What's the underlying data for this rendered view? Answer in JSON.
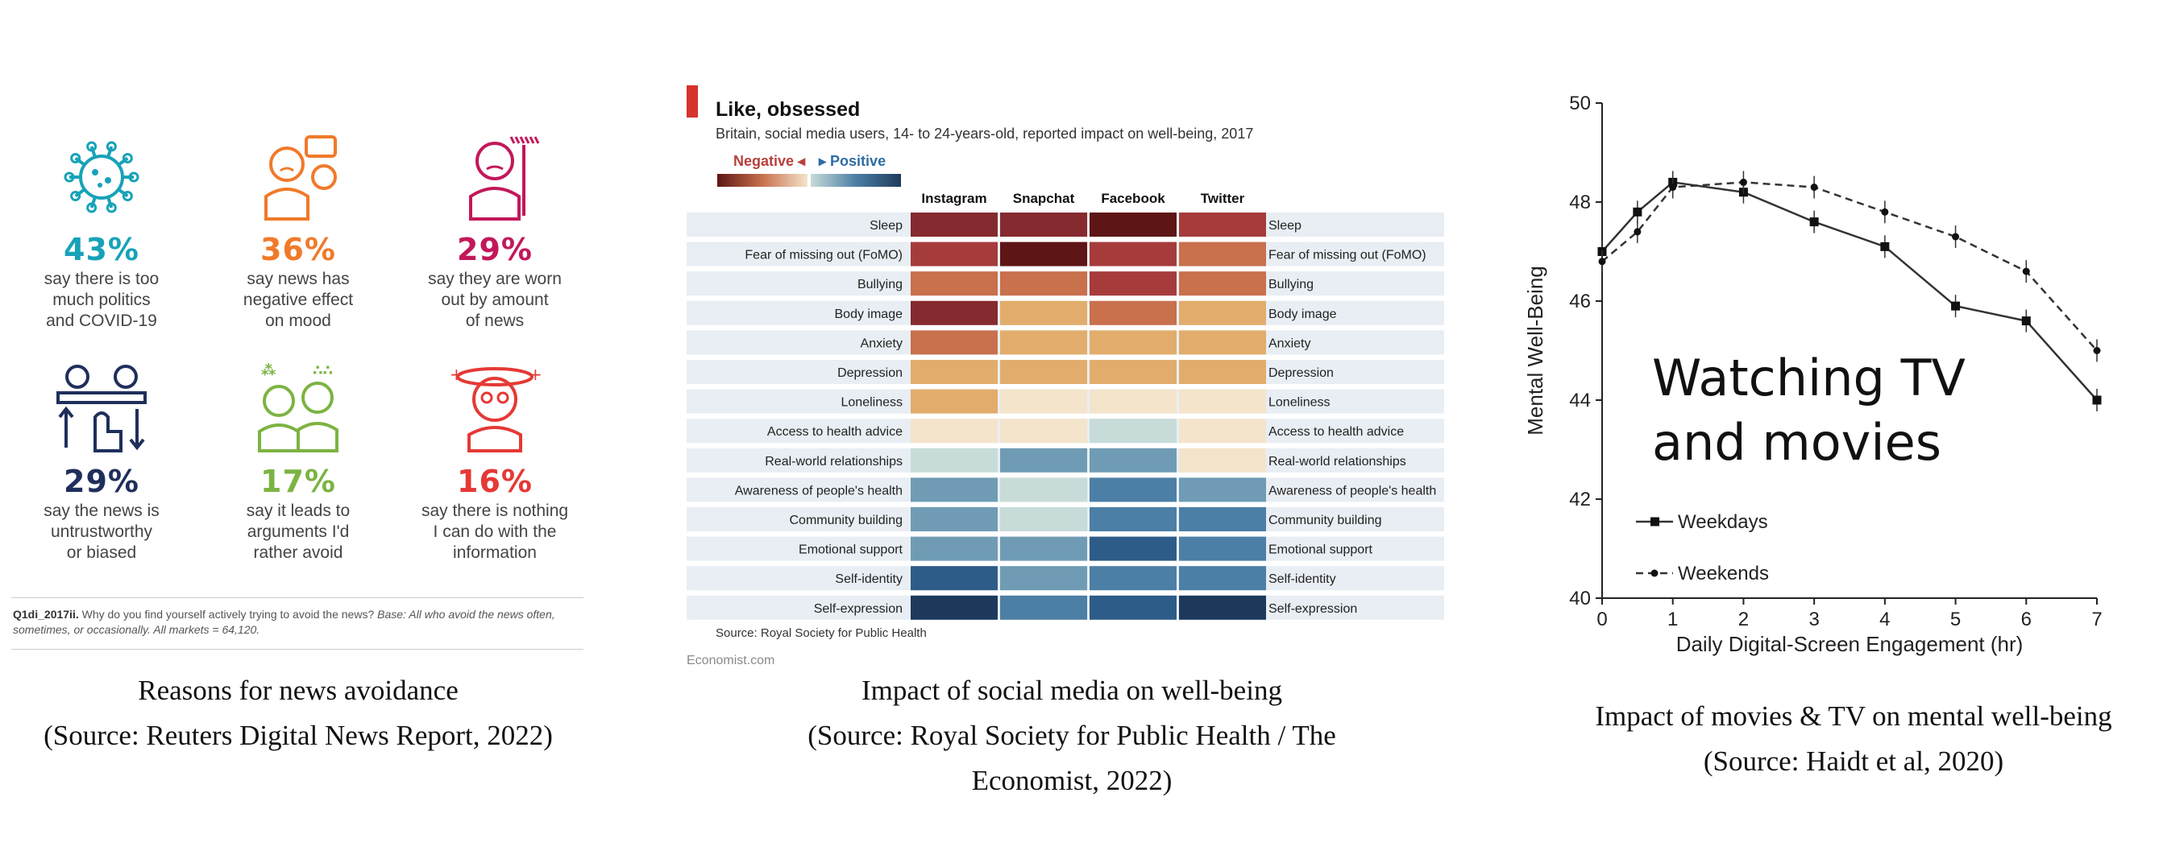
{
  "news_avoidance": {
    "items": [
      {
        "percent": "43%",
        "text": "say there is too\nmuch politics\nand COVID-19",
        "color": "#17a2b8",
        "icon": "virus-icon"
      },
      {
        "percent": "36%",
        "text": "say news has\nnegative effect\non mood",
        "color": "#f07a2a",
        "icon": "sad-person-icon"
      },
      {
        "percent": "29%",
        "text": "say they are worn\nout by amount\nof news",
        "color": "#c2185b",
        "icon": "tired-person-icon"
      },
      {
        "percent": "29%",
        "text": "say the news is\nuntrustworthy\nor biased",
        "color": "#1f2f5b",
        "icon": "voting-hand-icon"
      },
      {
        "percent": "17%",
        "text": "say it leads to\narguments I'd\nrather avoid",
        "color": "#7cb342",
        "icon": "arguing-people-icon"
      },
      {
        "percent": "16%",
        "text": "say there is nothing\nI can do with the\ninformation",
        "color": "#e53935",
        "icon": "dizzy-person-icon"
      }
    ],
    "note_code": "Q1di_2017ii.",
    "note_question": " Why do you find yourself actively trying to avoid the news? ",
    "note_base": "Base: All who avoid the news often, sometimes, or occasionally. All markets = 64,120.",
    "caption_line1": "Reasons for news avoidance",
    "caption_line2": "(Source: Reuters Digital News Report, 2022)"
  },
  "social_media": {
    "title": "Like, obsessed",
    "subtitle": "Britain, social media users, 14- to 24-years-old, reported impact on well-being, 2017",
    "legend_negative": "Negative",
    "legend_positive": "Positive",
    "source": "Source: Royal Society for Public Health",
    "credit": "Economist.com",
    "caption_line1": "Impact of social media on well-being",
    "caption_line2": "(Source: Royal Society for Public Health / The",
    "caption_line3": "Economist, 2022)"
  },
  "tv_movies": {
    "overlay_line1": "Watching TV",
    "overlay_line2": "and movies",
    "caption_line1": "Impact of movies & TV on mental well-being",
    "caption_line2": "(Source: Haidt et al, 2020)"
  },
  "chart_data": [
    {
      "type": "heatmap",
      "title": "Like, obsessed",
      "columns": [
        "Instagram",
        "Snapchat",
        "Facebook",
        "Twitter"
      ],
      "rows": [
        "Sleep",
        "Fear of missing out (FoMO)",
        "Bullying",
        "Body image",
        "Anxiety",
        "Depression",
        "Loneliness",
        "Access to health advice",
        "Real-world relationships",
        "Awareness of people's health",
        "Community building",
        "Emotional support",
        "Self-identity",
        "Self-expression"
      ],
      "scale": "-5 = most negative, +5 = most positive",
      "values": [
        [
          -4,
          -4,
          -5,
          -3
        ],
        [
          -3,
          -5,
          -3,
          -2
        ],
        [
          -2,
          -2,
          -3,
          -2
        ],
        [
          -4,
          -1,
          -2,
          -1
        ],
        [
          -2,
          -1,
          -1,
          -1
        ],
        [
          -1,
          -1,
          -1,
          -1
        ],
        [
          -1,
          0,
          0,
          0
        ],
        [
          0,
          0,
          1,
          0
        ],
        [
          1,
          2,
          2,
          0
        ],
        [
          2,
          1,
          3,
          2
        ],
        [
          2,
          1,
          3,
          3
        ],
        [
          2,
          2,
          4,
          3
        ],
        [
          4,
          2,
          3,
          3
        ],
        [
          5,
          3,
          4,
          5
        ]
      ],
      "colors": {
        "-5": "#5e1515",
        "-4": "#852a2f",
        "-3": "#a63b3c",
        "-2": "#c9704d",
        "-1": "#e2ad6c",
        "0": "#f3e4cb",
        "1": "#c7dcd8",
        "2": "#6f9cb4",
        "3": "#4c7fa5",
        "4": "#2e5c88",
        "5": "#1d3a5c"
      },
      "legend_negative_color": "#b73f3b",
      "legend_positive_color": "#2f6ca3"
    },
    {
      "type": "line",
      "xlabel": "Daily Digital-Screen Engagement (hr)",
      "ylabel": "Mental Well-Being",
      "xlim": [
        0,
        7
      ],
      "ylim": [
        40,
        50
      ],
      "xticks": [
        0,
        1,
        2,
        3,
        4,
        5,
        6,
        7
      ],
      "yticks": [
        40,
        42,
        44,
        46,
        48,
        50
      ],
      "series": [
        {
          "name": "Weekdays",
          "style": "solid",
          "marker": "square",
          "x": [
            0,
            0.5,
            1,
            2,
            3,
            4,
            5,
            6,
            7
          ],
          "y": [
            47.0,
            47.8,
            48.4,
            48.2,
            47.6,
            47.1,
            45.9,
            45.6,
            44.0
          ]
        },
        {
          "name": "Weekends",
          "style": "dashed",
          "marker": "circle",
          "x": [
            0,
            0.5,
            1,
            2,
            3,
            4,
            5,
            6,
            7
          ],
          "y": [
            46.8,
            47.4,
            48.3,
            48.4,
            48.3,
            47.8,
            47.3,
            46.6,
            45.0
          ]
        }
      ]
    }
  ]
}
